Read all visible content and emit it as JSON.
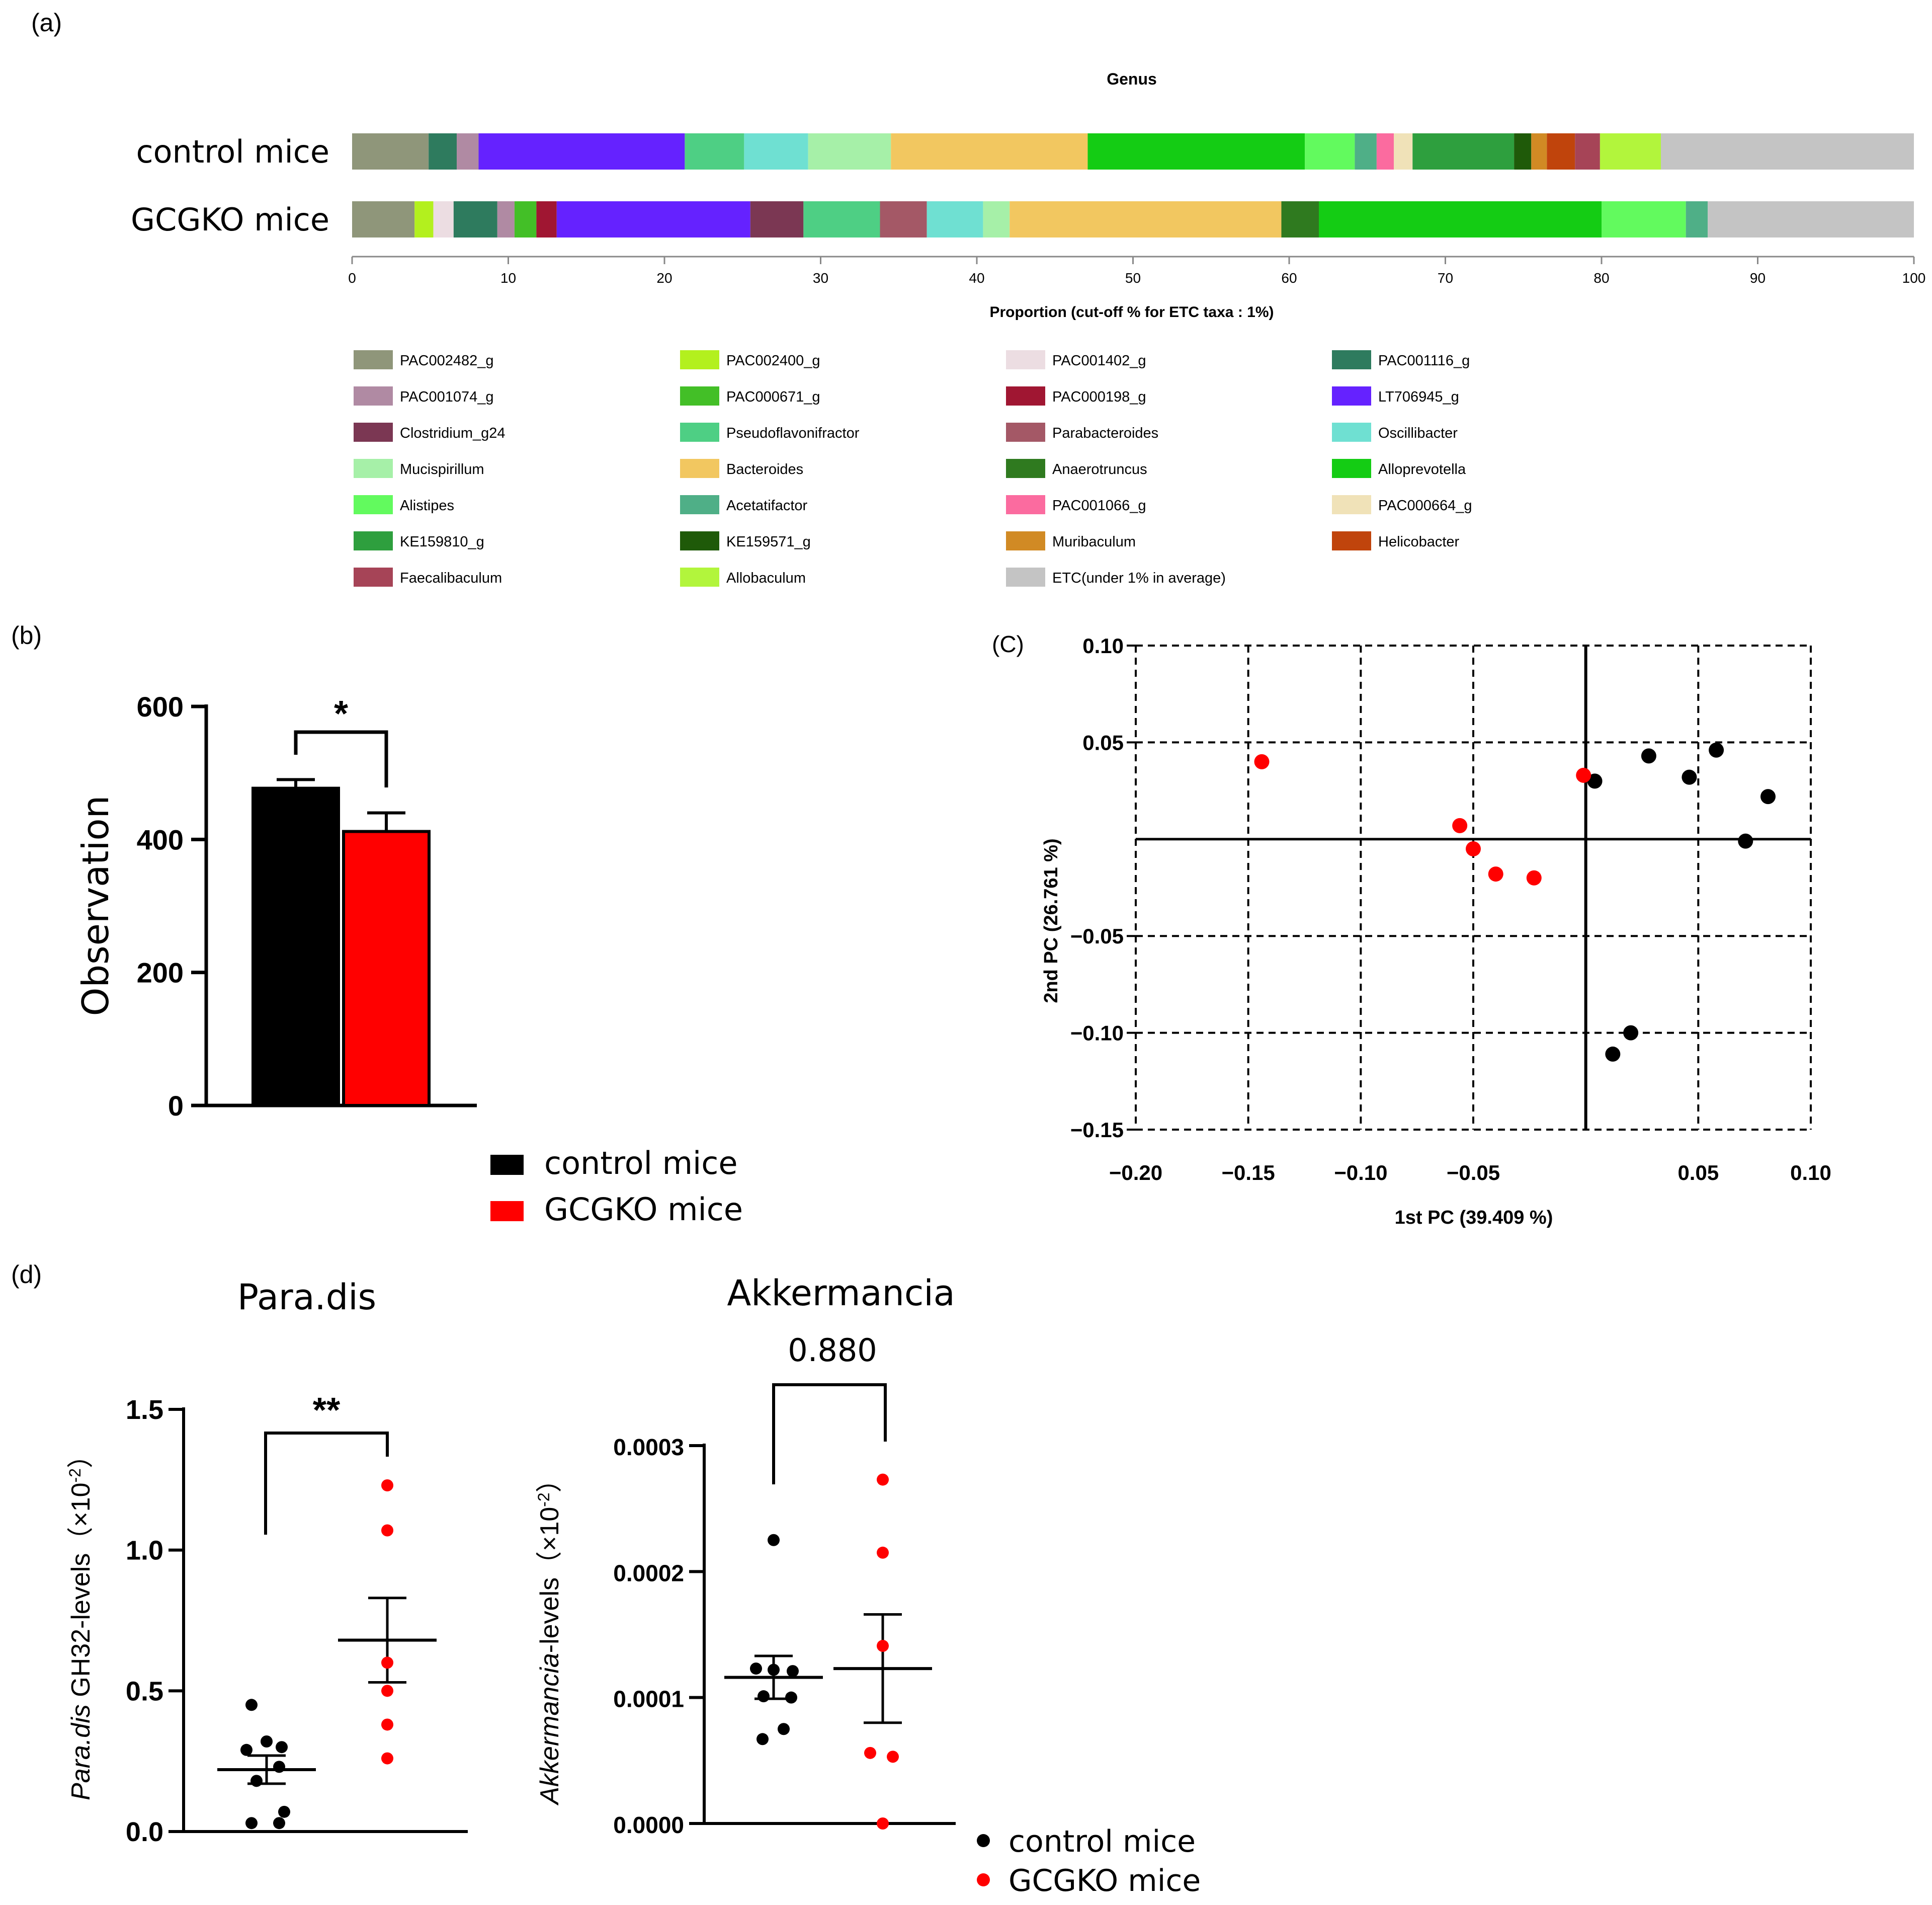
{
  "panel_labels": {
    "a": "(a)",
    "b": "(b)",
    "c": "(C)",
    "d": "(d)"
  },
  "chart_data": [
    {
      "id": "a",
      "type": "bar",
      "orientation": "horizontal-stacked",
      "title": "Genus",
      "xlabel": "Proportion (cut-off % for ETC taxa : 1%)",
      "xlim": [
        0,
        100
      ],
      "xticks": [
        "0",
        "10",
        "20",
        "30",
        "40",
        "50",
        "60",
        "70",
        "80",
        "90",
        "100"
      ],
      "categories": [
        "control mice",
        "GCGKO mice"
      ],
      "legend_position": "bottom",
      "legend": [
        {
          "name": "PAC002482_g",
          "color": "#8f967a"
        },
        {
          "name": "PAC002400_g",
          "color": "#b3f01e"
        },
        {
          "name": "PAC001402_g",
          "color": "#ecdde2"
        },
        {
          "name": "PAC001116_g",
          "color": "#2e7b5e"
        },
        {
          "name": "PAC001074_g",
          "color": "#b08aa3"
        },
        {
          "name": "PAC000671_g",
          "color": "#43bf27"
        },
        {
          "name": "PAC000198_g",
          "color": "#a01632"
        },
        {
          "name": "LT706945_g",
          "color": "#6522ff"
        },
        {
          "name": "Clostridium_g24",
          "color": "#7b3753"
        },
        {
          "name": "Pseudoflavonifractor",
          "color": "#4ecf84"
        },
        {
          "name": "Parabacteroides",
          "color": "#a45866"
        },
        {
          "name": "Oscillibacter",
          "color": "#6fe0d2"
        },
        {
          "name": "Mucispirillum",
          "color": "#a6f0a8"
        },
        {
          "name": "Bacteroides",
          "color": "#f2c760"
        },
        {
          "name": "Anaerotruncus",
          "color": "#2f7a1f"
        },
        {
          "name": "Alloprevotella",
          "color": "#14cc14"
        },
        {
          "name": "Alistipes",
          "color": "#62fa5e"
        },
        {
          "name": "Acetatifactor",
          "color": "#4faf87"
        },
        {
          "name": "PAC001066_g",
          "color": "#fb6b9f"
        },
        {
          "name": "PAC000664_g",
          "color": "#f0e2b8"
        },
        {
          "name": "KE159810_g",
          "color": "#2e9f3e"
        },
        {
          "name": "KE159571_g",
          "color": "#1f5a09"
        },
        {
          "name": "Muribaculum",
          "color": "#d18a24"
        },
        {
          "name": "Helicobacter",
          "color": "#c0440c"
        },
        {
          "name": "Faecalibaculum",
          "color": "#a64457"
        },
        {
          "name": "Allobaculum",
          "color": "#b2f53c"
        },
        {
          "name": "ETC(under 1% in average)",
          "color": "#c4c4c4"
        }
      ],
      "series": [
        {
          "name": "control mice",
          "segments": [
            {
              "taxon": "PAC002482_g",
              "value": 4.9
            },
            {
              "taxon": "PAC001116_g",
              "value": 1.8
            },
            {
              "taxon": "PAC001074_g",
              "value": 1.4
            },
            {
              "taxon": "LT706945_g",
              "value": 13.2
            },
            {
              "taxon": "Pseudoflavonifractor",
              "value": 3.8
            },
            {
              "taxon": "Oscillibacter",
              "value": 4.1
            },
            {
              "taxon": "Mucispirillum",
              "value": 5.3
            },
            {
              "taxon": "Bacteroides",
              "value": 12.6
            },
            {
              "taxon": "Alloprevotella",
              "value": 13.9
            },
            {
              "taxon": "Alistipes",
              "value": 3.2
            },
            {
              "taxon": "Acetatifactor",
              "value": 1.4
            },
            {
              "taxon": "PAC001066_g",
              "value": 1.1
            },
            {
              "taxon": "PAC000664_g",
              "value": 1.2
            },
            {
              "taxon": "KE159810_g",
              "value": 6.5
            },
            {
              "taxon": "KE159571_g",
              "value": 1.1
            },
            {
              "taxon": "Muribaculum",
              "value": 1.0
            },
            {
              "taxon": "Helicobacter",
              "value": 1.8
            },
            {
              "taxon": "Faecalibaculum",
              "value": 1.6
            },
            {
              "taxon": "Allobaculum",
              "value": 3.9
            },
            {
              "taxon": "ETC(under 1% in average)",
              "value": 16.2
            }
          ]
        },
        {
          "name": "GCGKO mice",
          "segments": [
            {
              "taxon": "PAC002482_g",
              "value": 4.0
            },
            {
              "taxon": "PAC002400_g",
              "value": 1.2
            },
            {
              "taxon": "PAC001402_g",
              "value": 1.3
            },
            {
              "taxon": "PAC001116_g",
              "value": 2.8
            },
            {
              "taxon": "PAC001074_g",
              "value": 1.1
            },
            {
              "taxon": "PAC000671_g",
              "value": 1.4
            },
            {
              "taxon": "PAC000198_g",
              "value": 1.3
            },
            {
              "taxon": "LT706945_g",
              "value": 12.4
            },
            {
              "taxon": "Clostridium_g24",
              "value": 3.4
            },
            {
              "taxon": "Pseudoflavonifractor",
              "value": 4.9
            },
            {
              "taxon": "Parabacteroides",
              "value": 3.0
            },
            {
              "taxon": "Oscillibacter",
              "value": 3.6
            },
            {
              "taxon": "Mucispirillum",
              "value": 1.7
            },
            {
              "taxon": "Bacteroides",
              "value": 17.4
            },
            {
              "taxon": "Anaerotruncus",
              "value": 2.4
            },
            {
              "taxon": "Alloprevotella",
              "value": 18.1
            },
            {
              "taxon": "Alistipes",
              "value": 5.4
            },
            {
              "taxon": "Acetatifactor",
              "value": 1.4
            },
            {
              "taxon": "ETC(under 1% in average)",
              "value": 13.2
            }
          ]
        }
      ]
    },
    {
      "id": "b",
      "type": "bar",
      "ylabel": "Observation",
      "ylim": [
        0,
        600
      ],
      "yticks": [
        "0",
        "200",
        "400",
        "600"
      ],
      "categories": [
        "control mice",
        "GCGKO mice"
      ],
      "values": [
        477,
        412
      ],
      "errors": [
        13,
        28
      ],
      "colors": [
        "#000000",
        "#ff0000"
      ],
      "significance": "*",
      "legend_position": "bottom",
      "legend": [
        {
          "name": "control mice",
          "color": "#000000"
        },
        {
          "name": "GCGKO mice",
          "color": "#ff0000"
        }
      ]
    },
    {
      "id": "c",
      "type": "scatter",
      "xlabel": "1st PC (39.409 %)",
      "ylabel": "2nd PC (26.761 %)",
      "xlim": [
        -0.2,
        0.1
      ],
      "ylim": [
        -0.15,
        0.1
      ],
      "xticks": [
        "−0.20",
        "−0.15",
        "−0.10",
        "−0.05",
        "0.05",
        "0.10"
      ],
      "yticks": [
        "0.10",
        "0.05",
        "−0.05",
        "−0.10",
        "−0.15"
      ],
      "grid": true,
      "series": [
        {
          "name": "control mice",
          "color": "#000000",
          "points": [
            [
              0.004,
              0.03
            ],
            [
              0.028,
              0.043
            ],
            [
              0.046,
              0.032
            ],
            [
              0.058,
              0.046
            ],
            [
              0.081,
              0.022
            ],
            [
              0.071,
              -0.001
            ],
            [
              0.02,
              -0.1
            ],
            [
              0.012,
              -0.111
            ]
          ]
        },
        {
          "name": "GCGKO mice",
          "color": "#ff0000",
          "points": [
            [
              -0.144,
              0.04
            ],
            [
              -0.056,
              0.007
            ],
            [
              -0.05,
              -0.005
            ],
            [
              -0.04,
              -0.018
            ],
            [
              -0.023,
              -0.02
            ],
            [
              -0.001,
              0.033
            ]
          ]
        }
      ]
    },
    {
      "id": "d1",
      "type": "scatter",
      "title": "Para.dis",
      "ylabel_italic": "Para.dis",
      "ylabel_rest": " GH32-levels（×10",
      "ylabel_sup": "-2",
      "ylabel_end": "）",
      "ylim": [
        0,
        1.5
      ],
      "yticks": [
        "0.0",
        "0.5",
        "1.0",
        "1.5"
      ],
      "categories": [
        "control mice",
        "GCGKO mice"
      ],
      "significance": "**",
      "series": [
        {
          "name": "control mice",
          "color": "#000000",
          "mean": 0.22,
          "sem": 0.05,
          "values": [
            0.45,
            0.32,
            0.3,
            0.29,
            0.23,
            0.18,
            0.07,
            0.03,
            0.03
          ]
        },
        {
          "name": "GCGKO mice",
          "color": "#ff0000",
          "mean": 0.68,
          "sem": 0.15,
          "values": [
            1.23,
            1.07,
            0.6,
            0.5,
            0.38,
            0.26
          ]
        }
      ]
    },
    {
      "id": "d2",
      "type": "scatter",
      "title": "Akkermancia",
      "ylabel_italic": "Akkermancia",
      "ylabel_rest": "-levels（×10",
      "ylabel_sup": "-2",
      "ylabel_end": "）",
      "ylim": [
        0,
        0.0003
      ],
      "yticks": [
        "0.0000",
        "0.0001",
        "0.0002",
        "0.0003"
      ],
      "categories": [
        "control mice",
        "GCGKO mice"
      ],
      "significance": "0.880",
      "series": [
        {
          "name": "control mice",
          "color": "#000000",
          "mean": 0.000116,
          "sem": 1.7e-05,
          "values": [
            0.000225,
            0.000123,
            0.000122,
            0.000121,
            0.000101,
            0.0001,
            7.5e-05,
            6.7e-05
          ]
        },
        {
          "name": "GCGKO mice",
          "color": "#ff0000",
          "mean": 0.000123,
          "sem": 4.3e-05,
          "values": [
            0.000273,
            0.000215,
            0.000141,
            5.6e-05,
            5.3e-05,
            0.0
          ]
        }
      ],
      "legend_position": "bottom-right",
      "legend": [
        {
          "name": "control mice",
          "color": "#000000"
        },
        {
          "name": "GCGKO mice",
          "color": "#ff0000"
        }
      ]
    }
  ]
}
